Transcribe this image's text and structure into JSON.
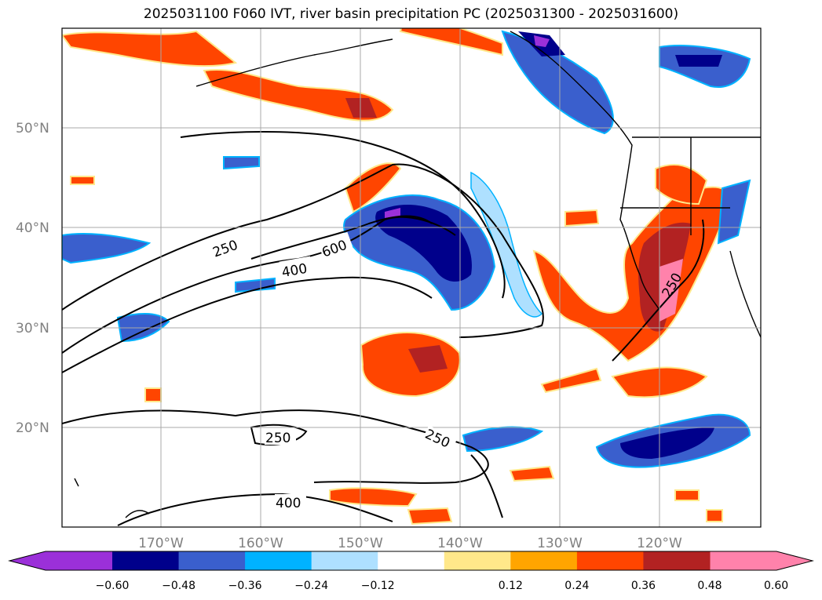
{
  "title": "2025031100 F060 IVT, river basin precipitation PC (2025031300 - 2025031600)",
  "map": {
    "lat_labels": [
      "50°N",
      "40°N",
      "30°N",
      "20°N"
    ],
    "lon_labels": [
      "170°W",
      "160°W",
      "150°W",
      "140°W",
      "130°W",
      "120°W"
    ],
    "contour_labels": [
      "250",
      "400",
      "600",
      "250",
      "250",
      "400",
      "250"
    ]
  },
  "colorbar": {
    "ticks": [
      "−0.60",
      "−0.48",
      "−0.36",
      "−0.24",
      "−0.12",
      "0.12",
      "0.24",
      "0.36",
      "0.48",
      "0.60"
    ],
    "colors": [
      "#9b30d9",
      "#00008b",
      "#3a5fcd",
      "#00b2ff",
      "#aee0ff",
      "#ffffff",
      "#ffe88a",
      "#ffa500",
      "#ff4500",
      "#b22222",
      "#ff82ab"
    ]
  }
}
